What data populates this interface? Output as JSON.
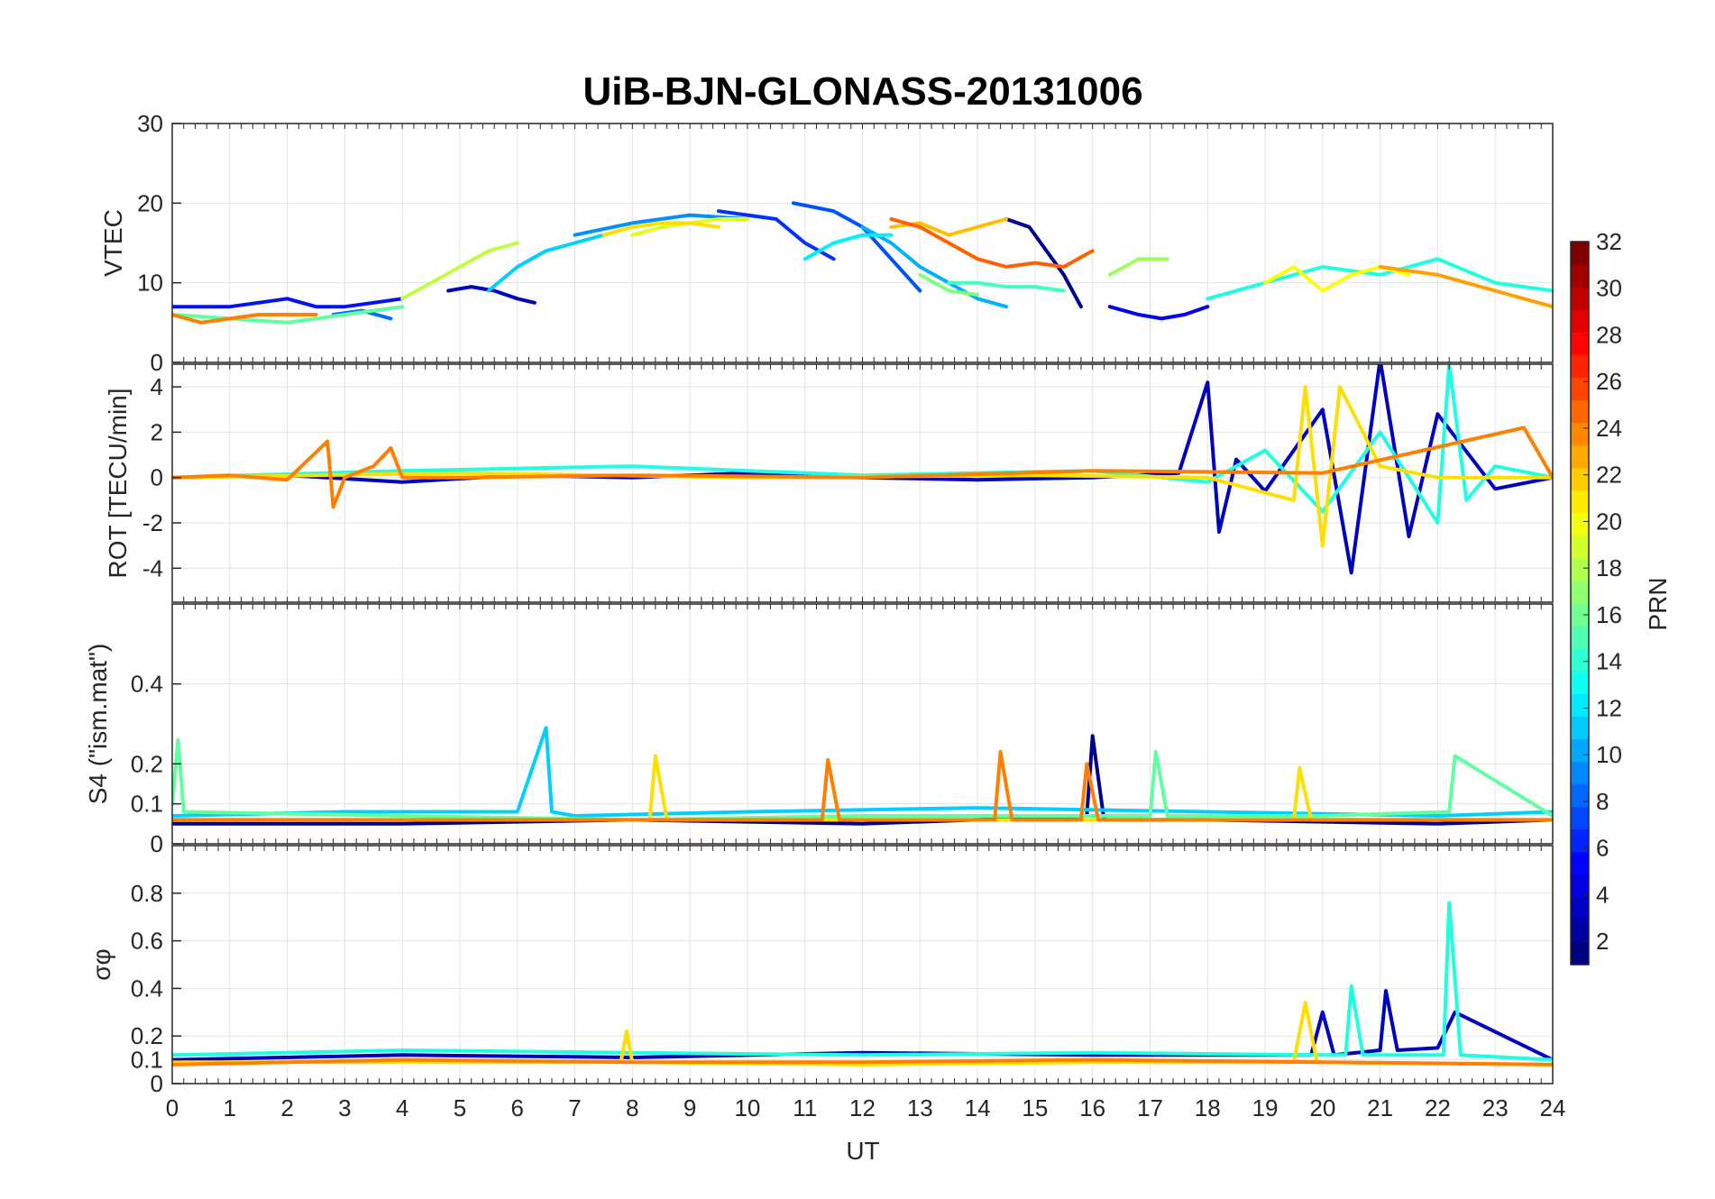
{
  "figure": {
    "title": "UiB-BJN-GLONASS-20131006",
    "xlabel": "UT",
    "x_ticks": [
      "0",
      "1",
      "2",
      "3",
      "4",
      "5",
      "6",
      "7",
      "8",
      "9",
      "10",
      "11",
      "12",
      "13",
      "14",
      "15",
      "16",
      "17",
      "18",
      "19",
      "20",
      "21",
      "22",
      "23",
      "24"
    ]
  },
  "colorbar": {
    "label": "PRN",
    "ticks": [
      "2",
      "4",
      "6",
      "8",
      "10",
      "12",
      "14",
      "16",
      "18",
      "20",
      "22",
      "24",
      "26",
      "28",
      "30",
      "32"
    ],
    "range": [
      1,
      32
    ],
    "colormap": "jet"
  },
  "chart_data": [
    {
      "type": "line",
      "panel": "vtec",
      "ylabel": "VTEC",
      "xlim": [
        0,
        24
      ],
      "ylim": [
        0,
        30
      ],
      "y_ticks": [
        "0",
        "10",
        "20",
        "30"
      ],
      "grid": true,
      "series": [
        {
          "prn": 1,
          "color": "#00008F",
          "x": [
            14.5,
            14.9,
            15.2,
            15.5,
            15.8
          ],
          "y": [
            18,
            17,
            14,
            11,
            7
          ]
        },
        {
          "prn": 2,
          "color": "#0000BF",
          "x": [
            4.8,
            5.2,
            5.6,
            6.0,
            6.3
          ],
          "y": [
            9,
            9.5,
            9,
            8,
            7.5
          ]
        },
        {
          "prn": 3,
          "color": "#0000EF",
          "x": [
            16.3,
            16.8,
            17.2,
            17.6,
            18.0
          ],
          "y": [
            7,
            6,
            5.5,
            6,
            7
          ]
        },
        {
          "prn": 4,
          "color": "#0010FF",
          "x": [
            0,
            0.5,
            1,
            1.5,
            2,
            2.5,
            3,
            3.5,
            4
          ],
          "y": [
            7,
            7,
            7,
            7.5,
            8,
            7,
            7,
            7.5,
            8
          ]
        },
        {
          "prn": 5,
          "color": "#0030FF",
          "x": [
            9.5,
            10,
            10.5,
            11,
            11.5
          ],
          "y": [
            19,
            18.5,
            18,
            15,
            13
          ]
        },
        {
          "prn": 6,
          "color": "#0050FF",
          "x": [
            10.8,
            11.5,
            12,
            12.5,
            13
          ],
          "y": [
            20,
            19,
            17,
            13,
            9
          ]
        },
        {
          "prn": 7,
          "color": "#0070FF",
          "x": [
            2.8,
            3.3,
            3.8
          ],
          "y": [
            6,
            6.5,
            5.5
          ]
        },
        {
          "prn": 8,
          "color": "#0090FF",
          "x": [
            7,
            8,
            9,
            10
          ],
          "y": [
            16,
            17.5,
            18.5,
            18
          ]
        },
        {
          "prn": 9,
          "color": "#00B0FF",
          "x": [
            12,
            12.5,
            13,
            13.5,
            14,
            14.5
          ],
          "y": [
            17,
            15,
            12,
            10,
            8,
            7
          ]
        },
        {
          "prn": 10,
          "color": "#00D0FF",
          "x": [
            5.5,
            6,
            6.5,
            7,
            7.5
          ],
          "y": [
            9,
            12,
            14,
            15,
            16
          ]
        },
        {
          "prn": 11,
          "color": "#00F0FF",
          "x": [
            11,
            11.5,
            12,
            12.5
          ],
          "y": [
            13,
            15,
            16,
            16
          ]
        },
        {
          "prn": 12,
          "color": "#20FFDF",
          "x": [
            18,
            19,
            20,
            21,
            22,
            23,
            24
          ],
          "y": [
            8,
            10,
            12,
            11,
            13,
            10,
            9
          ]
        },
        {
          "prn": 13,
          "color": "#40FFBF",
          "x": [
            13.5,
            14,
            14.5,
            15,
            15.5
          ],
          "y": [
            10,
            10,
            9.5,
            9.5,
            9
          ]
        },
        {
          "prn": 14,
          "color": "#60FF9F",
          "x": [
            0,
            1,
            2,
            3,
            4
          ],
          "y": [
            6,
            5.5,
            5,
            6,
            7
          ]
        },
        {
          "prn": 15,
          "color": "#80FF7F",
          "x": [
            13,
            13.5,
            14
          ],
          "y": [
            11,
            9,
            8.5
          ]
        },
        {
          "prn": 16,
          "color": "#9FFF60",
          "x": [
            16.3,
            16.8,
            17.3
          ],
          "y": [
            11,
            13,
            13
          ]
        },
        {
          "prn": 17,
          "color": "#BFFF40",
          "x": [
            4,
            4.5,
            5,
            5.5,
            6
          ],
          "y": [
            8,
            10,
            12,
            14,
            15
          ]
        },
        {
          "prn": 18,
          "color": "#DFFF20",
          "x": [
            8,
            8.5,
            9,
            9.5,
            10
          ],
          "y": [
            16,
            17,
            17.5,
            18,
            18
          ]
        },
        {
          "prn": 19,
          "color": "#FFFF00",
          "x": [
            19,
            19.5,
            20,
            20.5,
            21,
            21.5
          ],
          "y": [
            10,
            12,
            9,
            11,
            12,
            11
          ]
        },
        {
          "prn": 20,
          "color": "#FFDF00",
          "x": [
            7.5,
            8,
            8.5,
            9,
            9.5
          ],
          "y": [
            16,
            17,
            17.5,
            17.5,
            17
          ]
        },
        {
          "prn": 21,
          "color": "#FFBF00",
          "x": [
            12.5,
            13,
            13.5,
            14,
            14.5
          ],
          "y": [
            17,
            17.5,
            16,
            17,
            18
          ]
        },
        {
          "prn": 22,
          "color": "#FF9F00",
          "x": [
            21,
            22,
            23,
            24
          ],
          "y": [
            12,
            11,
            9,
            7
          ]
        },
        {
          "prn": 23,
          "color": "#FF8000",
          "x": [
            0,
            0.5,
            1,
            1.5,
            2,
            2.5
          ],
          "y": [
            6,
            5,
            5.5,
            6,
            6,
            6
          ]
        },
        {
          "prn": 24,
          "color": "#FF6000",
          "x": [
            12.5,
            13,
            13.5,
            14,
            14.5,
            15,
            15.5,
            16
          ],
          "y": [
            18,
            17,
            15,
            13,
            12,
            12.5,
            12,
            14
          ]
        }
      ]
    },
    {
      "type": "line",
      "panel": "rot",
      "ylabel": "ROT [TECU/min]",
      "xlim": [
        0,
        24
      ],
      "ylim": [
        -5.5,
        5
      ],
      "y_ticks": [
        "-4",
        "-2",
        "0",
        "2",
        "4"
      ],
      "grid": true,
      "series": [
        {
          "prn": 2,
          "color": "#0000BF",
          "x": [
            0,
            2,
            4,
            6,
            8,
            10,
            12,
            14,
            16,
            17.5,
            18,
            18.2,
            18.5,
            19,
            20,
            20.5,
            21,
            21.5,
            22,
            23,
            24
          ],
          "y": [
            0,
            0.1,
            -0.2,
            0.1,
            0,
            0.2,
            0,
            -0.1,
            0,
            0.2,
            4.2,
            -2.4,
            0.8,
            -0.6,
            3,
            -4.2,
            5.2,
            -2.6,
            2.8,
            -0.5,
            0
          ]
        },
        {
          "prn": 12,
          "color": "#20FFDF",
          "x": [
            0,
            4,
            8,
            12,
            16,
            18,
            19,
            20,
            21,
            22,
            22.2,
            22.5,
            23,
            24
          ],
          "y": [
            0,
            0.3,
            0.5,
            0.1,
            0.3,
            -0.2,
            1.2,
            -1.5,
            2,
            -2,
            5,
            -1,
            0.5,
            0
          ]
        },
        {
          "prn": 20,
          "color": "#FFDF00",
          "x": [
            0,
            5,
            10,
            15,
            18,
            19.5,
            19.7,
            20,
            20.3,
            21,
            22,
            24
          ],
          "y": [
            0,
            0.2,
            0,
            0.1,
            0,
            -1,
            4,
            -3,
            4,
            0.5,
            0,
            0
          ]
        },
        {
          "prn": 23,
          "color": "#FF8000",
          "x": [
            0,
            1,
            2,
            2.7,
            2.8,
            3,
            3.5,
            3.8,
            4,
            5,
            8,
            12,
            16,
            20,
            23.5,
            24
          ],
          "y": [
            0,
            0.1,
            -0.1,
            1.6,
            -1.3,
            0,
            0.5,
            1.3,
            0,
            0,
            0.1,
            0,
            0.3,
            0.2,
            2.2,
            0
          ]
        }
      ]
    },
    {
      "type": "line",
      "panel": "s4",
      "ylabel": "S4 (\"ism.mat\")",
      "xlim": [
        0,
        24
      ],
      "ylim": [
        0,
        0.6
      ],
      "y_ticks": [
        "0",
        "0.1",
        "0.2",
        "0.4"
      ],
      "grid": true,
      "series": [
        {
          "prn": 1,
          "color": "#00008F",
          "x": [
            0,
            4,
            8,
            12,
            15.9,
            16,
            16.2,
            18,
            22,
            24
          ],
          "y": [
            0.05,
            0.05,
            0.06,
            0.05,
            0.07,
            0.27,
            0.06,
            0.06,
            0.05,
            0.06
          ]
        },
        {
          "prn": 10,
          "color": "#00D0FF",
          "x": [
            0,
            3,
            6,
            6.5,
            6.6,
            7,
            10,
            14,
            18,
            22,
            24
          ],
          "y": [
            0.07,
            0.08,
            0.08,
            0.29,
            0.08,
            0.07,
            0.08,
            0.09,
            0.08,
            0.07,
            0.08
          ]
        },
        {
          "prn": 14,
          "color": "#60FF9F",
          "x": [
            0,
            0.1,
            0.2,
            4,
            8,
            12,
            17,
            17.1,
            17.3,
            20,
            22.2,
            22.3,
            24
          ],
          "y": [
            0.1,
            0.26,
            0.08,
            0.07,
            0.06,
            0.07,
            0.07,
            0.23,
            0.07,
            0.07,
            0.08,
            0.22,
            0.07
          ]
        },
        {
          "prn": 20,
          "color": "#FFDF00",
          "x": [
            0,
            5,
            8.3,
            8.4,
            8.6,
            12,
            19.5,
            19.6,
            19.8,
            24
          ],
          "y": [
            0.06,
            0.06,
            0.06,
            0.22,
            0.06,
            0.06,
            0.06,
            0.19,
            0.06,
            0.06
          ]
        },
        {
          "prn": 23,
          "color": "#FF8000",
          "x": [
            0,
            2,
            4,
            8,
            11.3,
            11.4,
            11.6,
            14.3,
            14.4,
            14.6,
            15.8,
            15.9,
            16.1,
            20,
            24
          ],
          "y": [
            0.06,
            0.06,
            0.06,
            0.06,
            0.06,
            0.21,
            0.06,
            0.06,
            0.23,
            0.06,
            0.06,
            0.2,
            0.06,
            0.06,
            0.06
          ]
        }
      ]
    },
    {
      "type": "line",
      "panel": "sigma_phi",
      "ylabel": "σφ",
      "xlim": [
        0,
        24
      ],
      "ylim": [
        0,
        1
      ],
      "y_ticks": [
        "0",
        "0.1",
        "0.2",
        "0.4",
        "0.6",
        "0.8"
      ],
      "grid": true,
      "series": [
        {
          "prn": 2,
          "color": "#0000BF",
          "x": [
            0,
            4,
            8,
            12,
            16,
            19.8,
            20,
            20.2,
            21,
            21.1,
            21.3,
            22,
            22.3,
            24
          ],
          "y": [
            0.1,
            0.12,
            0.11,
            0.13,
            0.12,
            0.12,
            0.3,
            0.12,
            0.14,
            0.39,
            0.14,
            0.15,
            0.3,
            0.1
          ]
        },
        {
          "prn": 12,
          "color": "#20FFDF",
          "x": [
            0,
            4,
            8,
            12,
            16,
            20,
            20.4,
            20.5,
            20.7,
            22,
            22.1,
            22.2,
            22.4,
            24
          ],
          "y": [
            0.12,
            0.14,
            0.13,
            0.12,
            0.13,
            0.12,
            0.12,
            0.41,
            0.12,
            0.12,
            0.12,
            0.76,
            0.12,
            0.1
          ]
        },
        {
          "prn": 20,
          "color": "#FFDF00",
          "x": [
            0,
            4,
            7.8,
            7.9,
            8,
            12,
            16,
            19.5,
            19.7,
            19.9,
            24
          ],
          "y": [
            0.09,
            0.09,
            0.09,
            0.22,
            0.09,
            0.08,
            0.09,
            0.09,
            0.34,
            0.09,
            0.08
          ]
        },
        {
          "prn": 23,
          "color": "#FF8000",
          "x": [
            0,
            4,
            8,
            12,
            16,
            20,
            24
          ],
          "y": [
            0.08,
            0.1,
            0.09,
            0.09,
            0.1,
            0.09,
            0.08
          ]
        }
      ]
    }
  ]
}
